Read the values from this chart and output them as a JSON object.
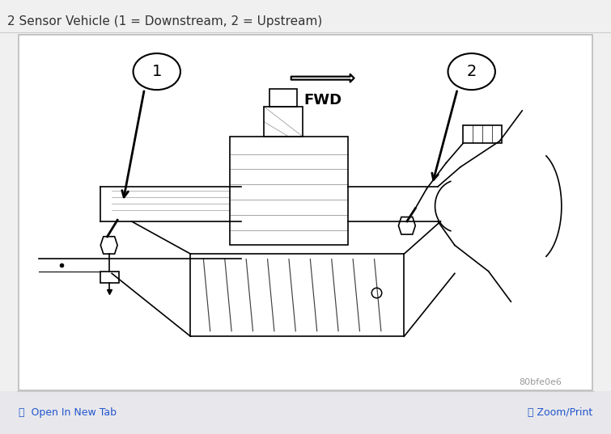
{
  "title": "2 Sensor Vehicle (1 = Downstream, 2 = Upstream)",
  "title_color": "#333333",
  "title_fontsize": 11,
  "bg_color": "#f0f0f0",
  "box_bg": "#ffffff",
  "box_border": "#bbbbbb",
  "bottom_bar_color": "#e8e8ec",
  "bottom_link_color": "#2255cc",
  "bottom_link_left": "⧉  Open In New Tab",
  "bottom_link_right": "🔍 Zoom/Print",
  "watermark": "80bfe0e6",
  "label1": "1",
  "label2": "2",
  "fwd_label": "FWD"
}
